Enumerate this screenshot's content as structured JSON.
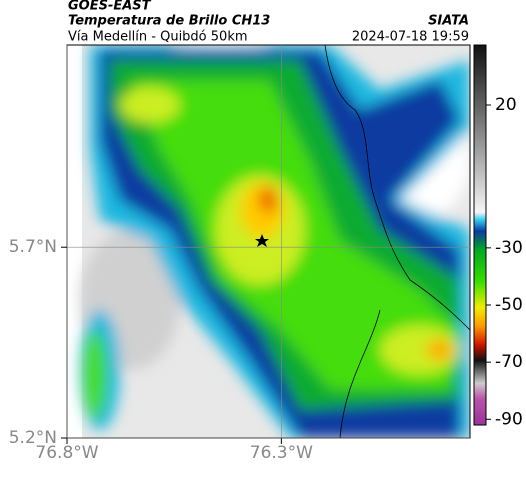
{
  "header": {
    "source": "GOES-EAST",
    "product": "Temperatura de Brillo CH13",
    "agency": "SIATA",
    "region": "Vía Medellín - Quibdó 50km",
    "timestamp": "2024-07-18 19:59"
  },
  "map": {
    "xlim": [
      -76.8,
      -75.86
    ],
    "ylim": [
      5.2,
      6.23
    ],
    "xticks": [
      {
        "value": -76.8,
        "label": "76.8°W"
      },
      {
        "value": -76.3,
        "label": "76.3°W"
      }
    ],
    "yticks": [
      {
        "value": 5.2,
        "label": "5.2°N"
      },
      {
        "value": 5.7,
        "label": "5.7°N"
      }
    ],
    "grid": true
  },
  "colorbar": {
    "lim": [
      -92,
      41
    ],
    "ticks": [
      20,
      -30,
      -50,
      -70,
      -90
    ]
  }
}
